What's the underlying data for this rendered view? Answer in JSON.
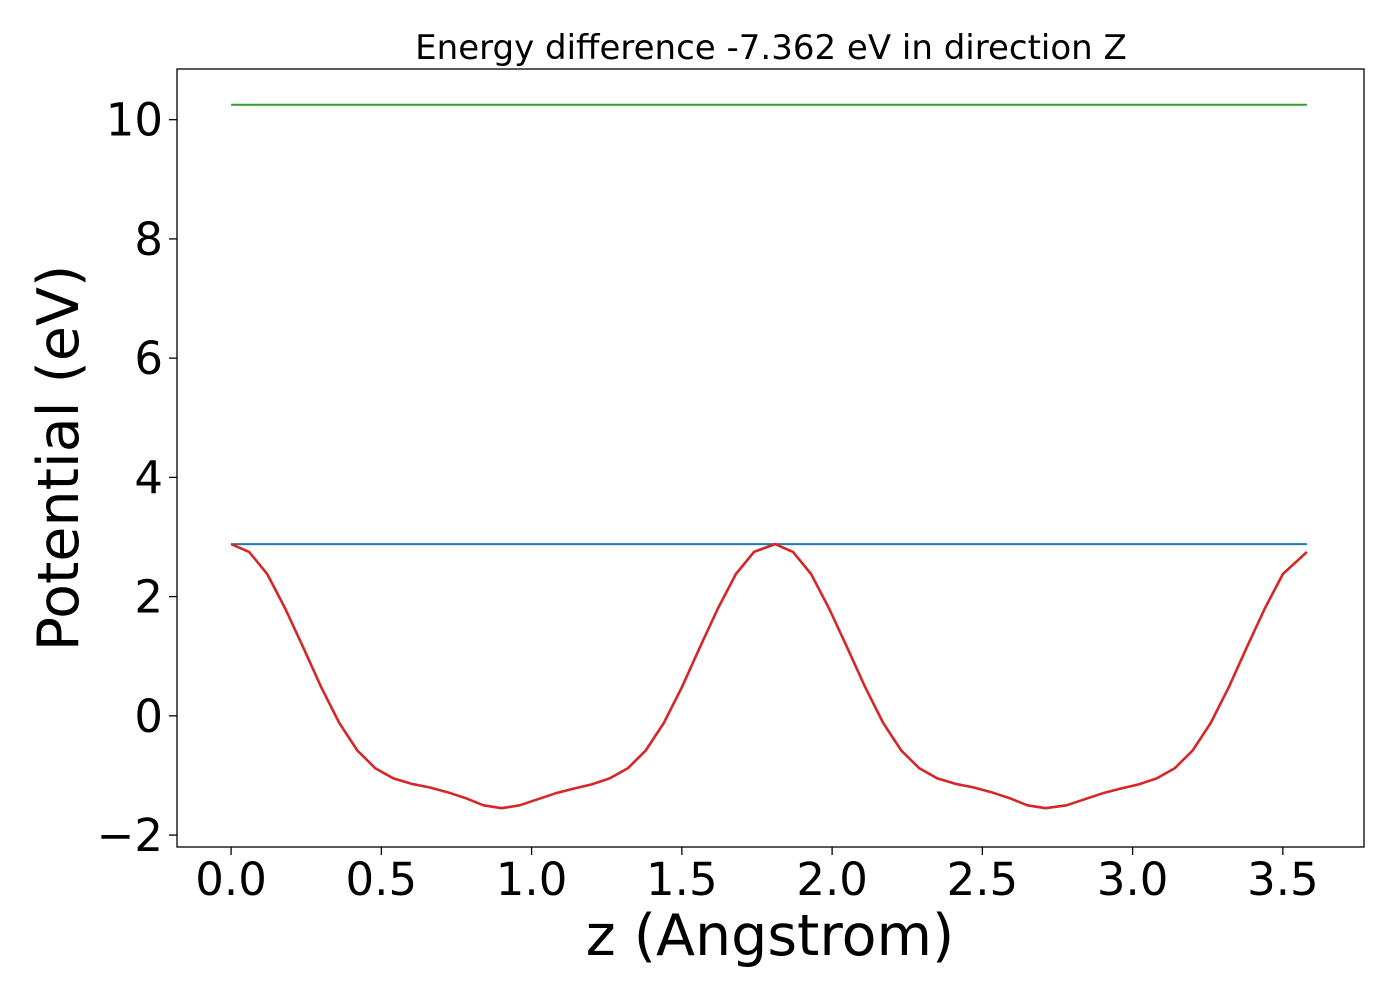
{
  "chart_data": {
    "type": "line",
    "title": "Energy difference -7.362 eV in direction Z",
    "xlabel": "z (Angstrom)",
    "ylabel": "Potential (eV)",
    "xlim": [
      -0.18,
      3.77
    ],
    "ylim": [
      -2.2,
      10.85
    ],
    "xticks": [
      0.0,
      0.5,
      1.0,
      1.5,
      2.0,
      2.5,
      3.0,
      3.5
    ],
    "xtick_labels": [
      "0.0",
      "0.5",
      "1.0",
      "1.5",
      "2.0",
      "2.5",
      "3.0",
      "3.5"
    ],
    "yticks": [
      -2,
      0,
      2,
      4,
      6,
      8,
      10
    ],
    "ytick_labels": [
      "−2",
      "0",
      "2",
      "4",
      "6",
      "8",
      "10"
    ],
    "grid": false,
    "legend": "none",
    "series": [
      {
        "color": "#2ca02c",
        "x": [
          0.0,
          3.58
        ],
        "y": [
          10.25,
          10.25
        ]
      },
      {
        "color": "#1f77b4",
        "x": [
          0.0,
          3.58
        ],
        "y": [
          2.88,
          2.88
        ]
      },
      {
        "color": "#d62728",
        "x": [
          0.0,
          0.06,
          0.12,
          0.18,
          0.24,
          0.3,
          0.36,
          0.42,
          0.48,
          0.54,
          0.6,
          0.66,
          0.72,
          0.78,
          0.84,
          0.9,
          0.96,
          1.02,
          1.08,
          1.14,
          1.2,
          1.26,
          1.32,
          1.38,
          1.44,
          1.5,
          1.56,
          1.62,
          1.68,
          1.74,
          1.81,
          1.87,
          1.93,
          1.99,
          2.05,
          2.11,
          2.17,
          2.23,
          2.29,
          2.35,
          2.41,
          2.47,
          2.53,
          2.59,
          2.65,
          2.71,
          2.78,
          2.84,
          2.9,
          2.96,
          3.02,
          3.08,
          3.14,
          3.2,
          3.26,
          3.32,
          3.38,
          3.44,
          3.5,
          3.58
        ],
        "y": [
          2.88,
          2.75,
          2.38,
          1.8,
          1.15,
          0.48,
          -0.12,
          -0.58,
          -0.88,
          -1.05,
          -1.14,
          -1.2,
          -1.28,
          -1.38,
          -1.5,
          -1.55,
          -1.5,
          -1.4,
          -1.3,
          -1.22,
          -1.15,
          -1.05,
          -0.88,
          -0.58,
          -0.12,
          0.48,
          1.15,
          1.8,
          2.38,
          2.75,
          2.88,
          2.75,
          2.38,
          1.8,
          1.15,
          0.48,
          -0.12,
          -0.58,
          -0.88,
          -1.05,
          -1.14,
          -1.2,
          -1.28,
          -1.38,
          -1.5,
          -1.55,
          -1.5,
          -1.4,
          -1.3,
          -1.22,
          -1.15,
          -1.05,
          -0.88,
          -0.58,
          -0.12,
          0.48,
          1.15,
          1.8,
          2.38,
          2.75
        ]
      }
    ]
  }
}
